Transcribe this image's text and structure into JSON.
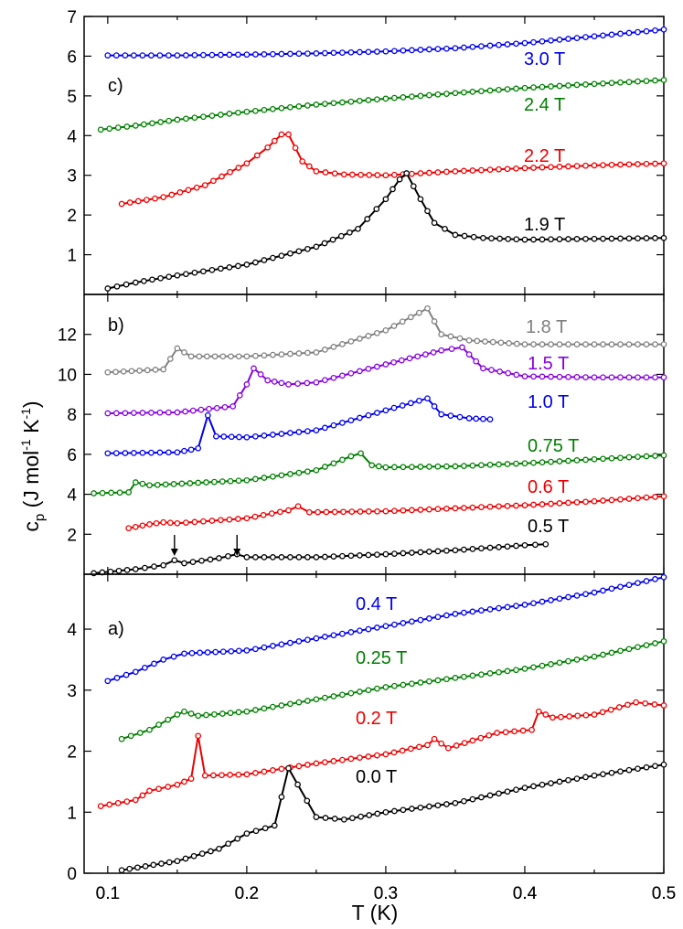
{
  "figure": {
    "xlabel": "T (K)",
    "ylabel": "c",
    "ylabel_sub": "p",
    "ylabel_units": " (J mol",
    "ylabel_sup1": "-1",
    "ylabel_mid": " K",
    "ylabel_sup2": "-1",
    "ylabel_close": ")"
  },
  "chart_data": [
    {
      "panel": "c)",
      "type": "line",
      "x_range": [
        0.083,
        0.5
      ],
      "ylim": [
        0,
        7
      ],
      "y_ticks": [
        "1",
        "2",
        "3",
        "4",
        "5",
        "6",
        "7"
      ],
      "x_ticks": [
        "0.1",
        "0.2",
        "0.3",
        "0.4",
        "0.5"
      ],
      "series": [
        {
          "name": "3.0 T",
          "color": "#0000ee",
          "points": [
            [
              0.1,
              6.02
            ],
            [
              0.15,
              6.02
            ],
            [
              0.2,
              6.04
            ],
            [
              0.25,
              6.07
            ],
            [
              0.3,
              6.12
            ],
            [
              0.35,
              6.2
            ],
            [
              0.4,
              6.33
            ],
            [
              0.45,
              6.5
            ],
            [
              0.5,
              6.67
            ]
          ]
        },
        {
          "name": "2.4 T",
          "color": "#008000",
          "points": [
            [
              0.095,
              4.15
            ],
            [
              0.12,
              4.25
            ],
            [
              0.15,
              4.4
            ],
            [
              0.2,
              4.6
            ],
            [
              0.25,
              4.78
            ],
            [
              0.3,
              4.93
            ],
            [
              0.35,
              5.07
            ],
            [
              0.4,
              5.2
            ],
            [
              0.45,
              5.3
            ],
            [
              0.5,
              5.4
            ]
          ]
        },
        {
          "name": "2.2 T",
          "color": "#ee0000",
          "points": [
            [
              0.11,
              2.28
            ],
            [
              0.14,
              2.45
            ],
            [
              0.17,
              2.75
            ],
            [
              0.2,
              3.3
            ],
            [
              0.215,
              3.7
            ],
            [
              0.225,
              4.03
            ],
            [
              0.23,
              4.03
            ],
            [
              0.24,
              3.35
            ],
            [
              0.25,
              3.1
            ],
            [
              0.27,
              3.02
            ],
            [
              0.3,
              3.0
            ],
            [
              0.35,
              3.1
            ],
            [
              0.4,
              3.18
            ],
            [
              0.45,
              3.25
            ],
            [
              0.5,
              3.3
            ]
          ]
        },
        {
          "name": "1.9 T",
          "color": "#000000",
          "points": [
            [
              0.1,
              0.15
            ],
            [
              0.12,
              0.3
            ],
            [
              0.15,
              0.48
            ],
            [
              0.2,
              0.75
            ],
            [
              0.25,
              1.2
            ],
            [
              0.28,
              1.65
            ],
            [
              0.3,
              2.4
            ],
            [
              0.31,
              2.9
            ],
            [
              0.315,
              3.05
            ],
            [
              0.325,
              2.4
            ],
            [
              0.335,
              1.8
            ],
            [
              0.35,
              1.5
            ],
            [
              0.37,
              1.42
            ],
            [
              0.4,
              1.38
            ],
            [
              0.45,
              1.4
            ],
            [
              0.5,
              1.42
            ]
          ]
        }
      ]
    },
    {
      "panel": "b)",
      "type": "line",
      "x_range": [
        0.083,
        0.5
      ],
      "ylim": [
        0,
        14
      ],
      "y_ticks": [
        "2",
        "4",
        "6",
        "8",
        "10",
        "12"
      ],
      "annotations": [
        "arrow at 0.148 K",
        "arrow at 0.193 K"
      ],
      "series": [
        {
          "name": "1.8 T",
          "color": "#808080",
          "points": [
            [
              0.1,
              10.1
            ],
            [
              0.14,
              10.25
            ],
            [
              0.15,
              11.3
            ],
            [
              0.16,
              10.9
            ],
            [
              0.2,
              10.9
            ],
            [
              0.25,
              11.1
            ],
            [
              0.3,
              12.2
            ],
            [
              0.33,
              13.3
            ],
            [
              0.34,
              12.0
            ],
            [
              0.36,
              11.7
            ],
            [
              0.4,
              11.5
            ],
            [
              0.45,
              11.5
            ],
            [
              0.5,
              11.5
            ]
          ]
        },
        {
          "name": "1.5 T",
          "color": "#8800dd",
          "points": [
            [
              0.1,
              8.05
            ],
            [
              0.15,
              8.1
            ],
            [
              0.19,
              8.4
            ],
            [
              0.2,
              9.5
            ],
            [
              0.205,
              10.3
            ],
            [
              0.215,
              9.7
            ],
            [
              0.23,
              9.5
            ],
            [
              0.25,
              9.6
            ],
            [
              0.3,
              10.5
            ],
            [
              0.34,
              11.2
            ],
            [
              0.355,
              11.35
            ],
            [
              0.37,
              10.3
            ],
            [
              0.4,
              9.9
            ],
            [
              0.45,
              9.85
            ],
            [
              0.5,
              9.85
            ]
          ]
        },
        {
          "name": "1.0 T",
          "color": "#0000ee",
          "points": [
            [
              0.1,
              6.05
            ],
            [
              0.15,
              6.1
            ],
            [
              0.165,
              6.3
            ],
            [
              0.172,
              7.95
            ],
            [
              0.178,
              6.9
            ],
            [
              0.2,
              6.85
            ],
            [
              0.25,
              7.2
            ],
            [
              0.3,
              8.2
            ],
            [
              0.33,
              8.8
            ],
            [
              0.34,
              8.0
            ],
            [
              0.36,
              7.8
            ],
            [
              0.375,
              7.75
            ]
          ]
        },
        {
          "name": "0.75 T",
          "color": "#008000",
          "points": [
            [
              0.09,
              4.05
            ],
            [
              0.115,
              4.1
            ],
            [
              0.12,
              4.6
            ],
            [
              0.13,
              4.45
            ],
            [
              0.2,
              4.7
            ],
            [
              0.25,
              5.2
            ],
            [
              0.275,
              5.9
            ],
            [
              0.282,
              6.05
            ],
            [
              0.29,
              5.45
            ],
            [
              0.3,
              5.35
            ],
            [
              0.35,
              5.4
            ],
            [
              0.4,
              5.55
            ],
            [
              0.45,
              5.75
            ],
            [
              0.5,
              5.95
            ]
          ]
        },
        {
          "name": "0.6 T",
          "color": "#ee0000",
          "points": [
            [
              0.115,
              2.3
            ],
            [
              0.13,
              2.5
            ],
            [
              0.14,
              2.6
            ],
            [
              0.15,
              2.55
            ],
            [
              0.2,
              2.8
            ],
            [
              0.23,
              3.2
            ],
            [
              0.237,
              3.4
            ],
            [
              0.245,
              3.1
            ],
            [
              0.3,
              3.15
            ],
            [
              0.35,
              3.3
            ],
            [
              0.4,
              3.45
            ],
            [
              0.45,
              3.65
            ],
            [
              0.5,
              3.9
            ]
          ]
        },
        {
          "name": "0.5 T",
          "color": "#000000",
          "points": [
            [
              0.09,
              0.05
            ],
            [
              0.12,
              0.25
            ],
            [
              0.14,
              0.45
            ],
            [
              0.148,
              0.7
            ],
            [
              0.155,
              0.55
            ],
            [
              0.18,
              0.8
            ],
            [
              0.193,
              1.0
            ],
            [
              0.2,
              0.85
            ],
            [
              0.25,
              0.85
            ],
            [
              0.3,
              1.0
            ],
            [
              0.35,
              1.2
            ],
            [
              0.4,
              1.45
            ],
            [
              0.415,
              1.5
            ]
          ]
        }
      ]
    },
    {
      "panel": "a)",
      "type": "line",
      "x_range": [
        0.083,
        0.5
      ],
      "ylim": [
        0,
        4.9
      ],
      "y_ticks": [
        "0",
        "1",
        "2",
        "3",
        "4"
      ],
      "series": [
        {
          "name": "0.4 T",
          "color": "#0000ee",
          "points": [
            [
              0.1,
              3.15
            ],
            [
              0.12,
              3.3
            ],
            [
              0.14,
              3.5
            ],
            [
              0.155,
              3.6
            ],
            [
              0.2,
              3.65
            ],
            [
              0.25,
              3.85
            ],
            [
              0.3,
              4.05
            ],
            [
              0.35,
              4.25
            ],
            [
              0.4,
              4.4
            ],
            [
              0.45,
              4.6
            ],
            [
              0.5,
              4.85
            ]
          ]
        },
        {
          "name": "0.25 T",
          "color": "#008000",
          "points": [
            [
              0.11,
              2.2
            ],
            [
              0.13,
              2.35
            ],
            [
              0.15,
              2.6
            ],
            [
              0.155,
              2.65
            ],
            [
              0.165,
              2.58
            ],
            [
              0.2,
              2.65
            ],
            [
              0.25,
              2.85
            ],
            [
              0.3,
              3.05
            ],
            [
              0.35,
              3.2
            ],
            [
              0.4,
              3.35
            ],
            [
              0.45,
              3.55
            ],
            [
              0.5,
              3.8
            ]
          ]
        },
        {
          "name": "0.2 T",
          "color": "#ee0000",
          "points": [
            [
              0.095,
              1.1
            ],
            [
              0.12,
              1.2
            ],
            [
              0.13,
              1.35
            ],
            [
              0.15,
              1.45
            ],
            [
              0.16,
              1.55
            ],
            [
              0.165,
              2.25
            ],
            [
              0.17,
              1.6
            ],
            [
              0.2,
              1.62
            ],
            [
              0.25,
              1.8
            ],
            [
              0.3,
              1.95
            ],
            [
              0.33,
              2.1
            ],
            [
              0.335,
              2.2
            ],
            [
              0.345,
              2.05
            ],
            [
              0.38,
              2.3
            ],
            [
              0.405,
              2.35
            ],
            [
              0.41,
              2.65
            ],
            [
              0.42,
              2.55
            ],
            [
              0.45,
              2.6
            ],
            [
              0.48,
              2.8
            ],
            [
              0.5,
              2.75
            ]
          ]
        },
        {
          "name": "0.0 T",
          "color": "#000000",
          "points": [
            [
              0.11,
              0.05
            ],
            [
              0.15,
              0.2
            ],
            [
              0.18,
              0.4
            ],
            [
              0.2,
              0.65
            ],
            [
              0.22,
              0.78
            ],
            [
              0.23,
              1.72
            ],
            [
              0.25,
              0.92
            ],
            [
              0.27,
              0.88
            ],
            [
              0.3,
              1.0
            ],
            [
              0.35,
              1.15
            ],
            [
              0.4,
              1.4
            ],
            [
              0.45,
              1.6
            ],
            [
              0.5,
              1.78
            ]
          ]
        }
      ]
    }
  ]
}
